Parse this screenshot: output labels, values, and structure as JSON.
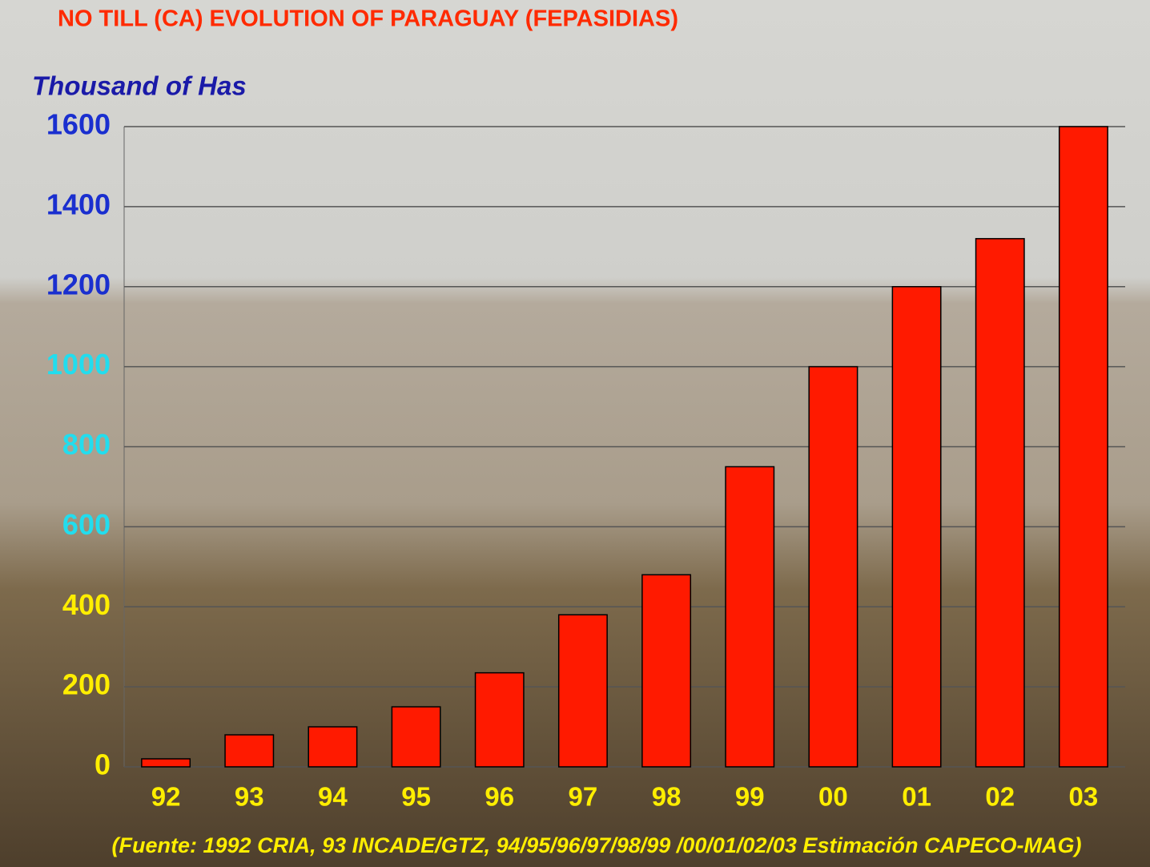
{
  "chart_data": {
    "type": "bar",
    "title": "NO TILL (CA) EVOLUTION OF PARAGUAY (FEPASIDIAS)",
    "y_label": "Thousand of Has",
    "source": "(Fuente: 1992 CRIA, 93 INCADE/GTZ, 94/95/96/97/98/99 /00/01/02/03 Estimación CAPECO-MAG)",
    "categories": [
      "92",
      "93",
      "94",
      "95",
      "96",
      "97",
      "98",
      "99",
      "00",
      "01",
      "02",
      "03"
    ],
    "values": [
      20,
      80,
      100,
      150,
      235,
      380,
      480,
      750,
      1000,
      1200,
      1320,
      1600
    ],
    "color": "#ff1a00",
    "ylim": [
      0,
      1600
    ],
    "yticks": [
      0,
      200,
      400,
      600,
      800,
      1000,
      1200,
      1400,
      1600
    ],
    "ytick_colors": [
      "#ffee00",
      "#ffee00",
      "#ffee00",
      "#22ddee",
      "#22ddee",
      "#22ddee",
      "#1a2fcf",
      "#1a2fcf",
      "#1a2fcf"
    ],
    "grid": true
  }
}
